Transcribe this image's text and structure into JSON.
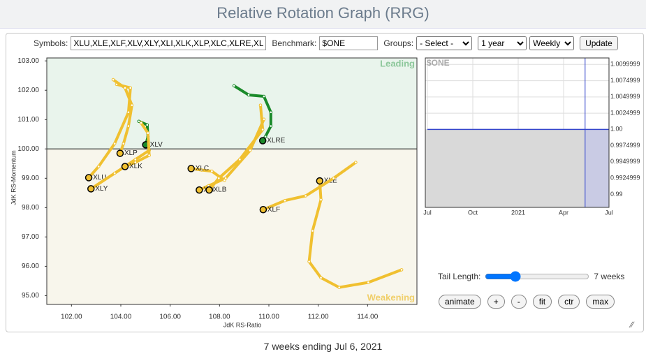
{
  "header": {
    "title": "Relative Rotation Graph (RRG)"
  },
  "controls": {
    "symbols_label": "Symbols:",
    "symbols": "XLU,XLE,XLF,XLV,XLY,XLI,XLK,XLP,XLC,XLRE,XLB",
    "benchmark_label": "Benchmark:",
    "benchmark": "$ONE",
    "groups_label": "Groups:",
    "groups": "- Select -",
    "period": "1 year",
    "interval": "Weekly",
    "update": "Update"
  },
  "chart_data": [
    {
      "type": "scatter",
      "xlabel": "JdK RS-Ratio",
      "ylabel": "JdK RS-Momentum",
      "annotations": [
        "Leading",
        "Weakening"
      ],
      "center": [
        100,
        100
      ],
      "grid": false,
      "xlim": [
        101,
        116
      ],
      "ylim": [
        94.7,
        103.1
      ],
      "xticks": [
        {
          "value": 102,
          "label": "102.00"
        },
        {
          "value": 104,
          "label": "104.00"
        },
        {
          "value": 106,
          "label": "106.00"
        },
        {
          "value": 108,
          "label": "108.00"
        },
        {
          "value": 110,
          "label": "110.00"
        },
        {
          "value": 112,
          "label": "112.00"
        },
        {
          "value": 114,
          "label": "114.00"
        }
      ],
      "yticks": [
        {
          "value": 95,
          "label": "95.00"
        },
        {
          "value": 96,
          "label": "96.00"
        },
        {
          "value": 97,
          "label": "97.00"
        },
        {
          "value": 98,
          "label": "98.00"
        },
        {
          "value": 99,
          "label": "99.00"
        },
        {
          "value": 100,
          "label": "100.00"
        },
        {
          "value": 101,
          "label": "101.00"
        },
        {
          "value": 102,
          "label": "102.00"
        },
        {
          "value": 103,
          "label": "103.00"
        }
      ],
      "series": [
        {
          "name": "XLU",
          "color": "#f0c030",
          "x": [
            103.83,
            104.39,
            104.31,
            103.75,
            103.1,
            102.7
          ],
          "y": [
            102.2,
            102.08,
            101.25,
            100.18,
            99.4,
            99.02
          ]
        },
        {
          "name": "XLE",
          "color": "#f0c030",
          "x": [
            115.38,
            114.03,
            112.85,
            112.11,
            111.63,
            111.77,
            112.11,
            112.06
          ],
          "y": [
            95.88,
            95.45,
            95.28,
            95.61,
            96.16,
            97.21,
            98.27,
            98.91
          ]
        },
        {
          "name": "XLF",
          "color": "#f0c030",
          "x": [
            113.52,
            112.62,
            111.49,
            110.65,
            109.77
          ],
          "y": [
            99.54,
            99.0,
            98.4,
            98.24,
            97.93
          ]
        },
        {
          "name": "XLV",
          "color": "#1a8a2a",
          "x": [
            104.73,
            105.07,
            105.1,
            105.01
          ],
          "y": [
            100.94,
            100.82,
            100.42,
            100.14
          ]
        },
        {
          "name": "XLY",
          "color": "#f0c030",
          "x": [
            105.15,
            104.59,
            103.75,
            102.79
          ],
          "y": [
            99.95,
            99.64,
            99.17,
            98.64
          ]
        },
        {
          "name": "XLI",
          "color": "#f0c030",
          "x": [
            109.8,
            109.24,
            108.25,
            107.55,
            107.18
          ],
          "y": [
            101.01,
            99.95,
            99.0,
            98.74,
            98.6
          ]
        },
        {
          "name": "XLK",
          "color": "#f0c030",
          "x": [
            104.82,
            105.1,
            105.15,
            104.59,
            104.17
          ],
          "y": [
            100.89,
            100.54,
            99.78,
            99.54,
            99.4
          ]
        },
        {
          "name": "XLP",
          "color": "#f0c030",
          "x": [
            103.69,
            104.17,
            104.45,
            104.31,
            104.11,
            103.97
          ],
          "y": [
            102.36,
            102.08,
            101.49,
            100.78,
            100.18,
            99.85
          ]
        },
        {
          "name": "XLC",
          "color": "#f0c030",
          "x": [
            108.2,
            107.69,
            107.27,
            106.85
          ],
          "y": [
            98.93,
            99.24,
            99.28,
            99.33
          ]
        },
        {
          "name": "XLRE",
          "color": "#1a8a2a",
          "x": [
            108.59,
            109.18,
            109.8,
            110.08,
            110.08,
            109.86,
            109.75
          ],
          "y": [
            102.15,
            101.84,
            101.79,
            101.25,
            100.78,
            100.42,
            100.28
          ]
        },
        {
          "name": "XLB",
          "color": "#f0c030",
          "x": [
            109.66,
            109.75,
            108.82,
            107.97,
            107.58
          ],
          "y": [
            101.49,
            100.66,
            99.64,
            99.0,
            98.6
          ]
        }
      ]
    },
    {
      "type": "line",
      "title": "$ONE",
      "categories": [
        "Jul",
        "Oct",
        "2021",
        "Apr",
        "Jul"
      ],
      "values": [
        1,
        1,
        1,
        1,
        1
      ],
      "color": "#3344cc",
      "ylim": [
        0.988,
        1.011
      ],
      "yticks": [
        0.99,
        {
          "value": 0.9925,
          "label": "0.9924999"
        },
        {
          "value": 0.995,
          "label": "0.9949999"
        },
        {
          "value": 0.9975,
          "label": "0.9974999"
        },
        {
          "value": 1,
          "label": "1.00"
        },
        {
          "value": 1.0025,
          "label": "1.0024999"
        },
        {
          "value": 1.005,
          "label": "1.0049999"
        },
        {
          "value": 1.0075,
          "label": "1.0074999"
        },
        {
          "value": 1.01,
          "label": "1.0099999"
        }
      ],
      "grid": true
    }
  ],
  "tail_controls": {
    "label": "Tail Length:",
    "value": "7 weeks",
    "buttons": [
      "animate",
      "+",
      "-",
      "fit",
      "ctr",
      "max"
    ]
  },
  "footer": "7 weeks ending Jul 6, 2021"
}
